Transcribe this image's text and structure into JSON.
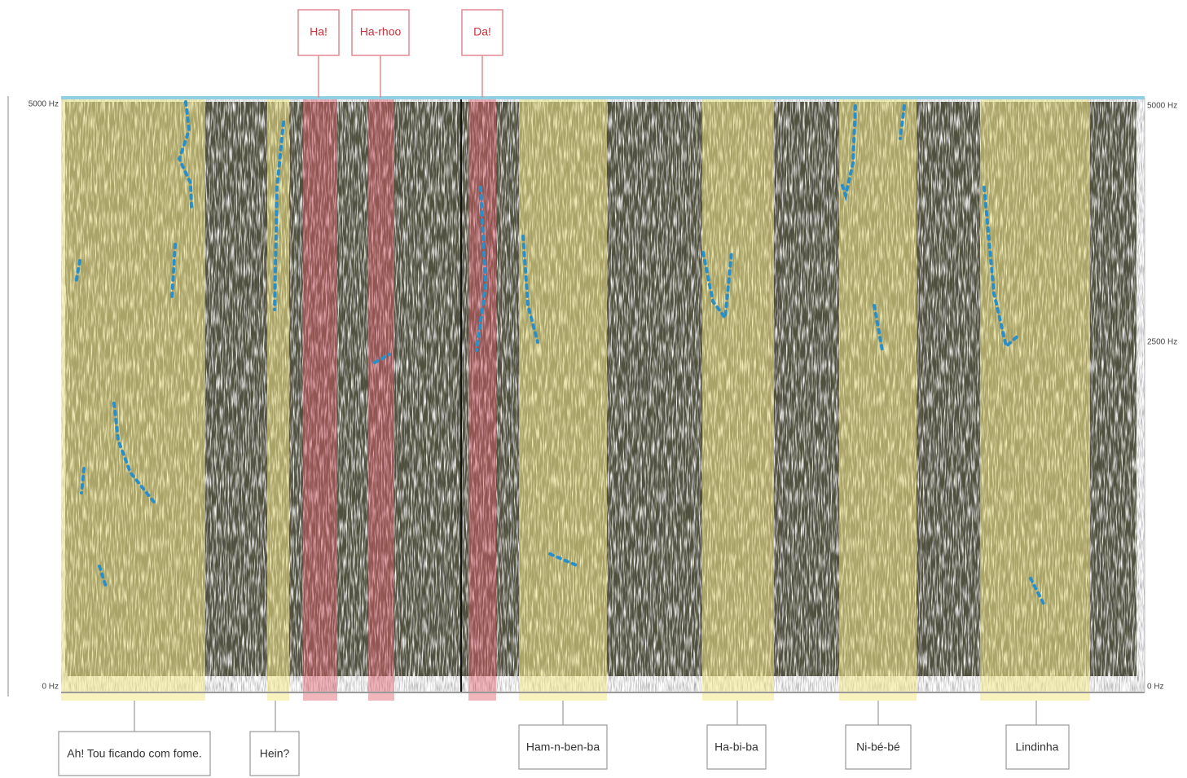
{
  "top_labels": [
    "Ha!",
    "Ha-rhoo",
    "Da!"
  ],
  "bottom_labels": [
    "Ah! Tou ficando com fome.",
    "Hein?",
    "Ham-n-ben-ba",
    "Ha-bi-ba",
    "Ni-bé-bé",
    "Lindinha"
  ],
  "axis": {
    "left_top": "5000 Hz",
    "left_bottom": "0 Hz",
    "right_top": "5000 Hz",
    "right_middle": "2500 Hz",
    "right_bottom": "0 Hz"
  }
}
